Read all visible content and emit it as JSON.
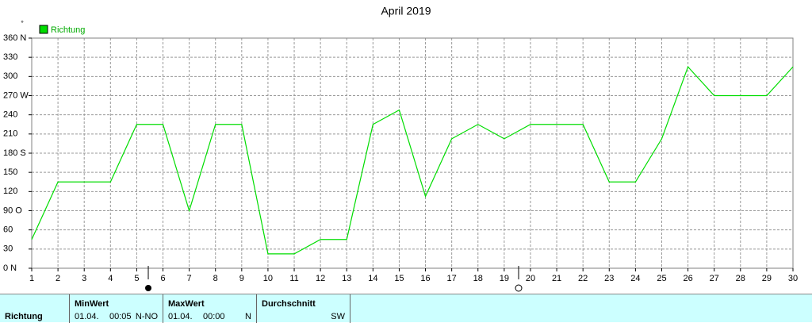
{
  "chart_data": {
    "type": "line",
    "title": "April 2019",
    "y_unit": "°",
    "x": [
      1,
      2,
      3,
      4,
      5,
      6,
      7,
      8,
      9,
      10,
      11,
      12,
      13,
      14,
      15,
      16,
      17,
      18,
      19,
      20,
      21,
      22,
      23,
      24,
      25,
      26,
      27,
      28,
      29,
      30
    ],
    "xlim": [
      1,
      30
    ],
    "xticks": [
      1,
      2,
      3,
      4,
      5,
      6,
      7,
      8,
      9,
      10,
      11,
      12,
      13,
      14,
      15,
      16,
      17,
      18,
      19,
      20,
      21,
      22,
      23,
      24,
      25,
      26,
      27,
      28,
      29,
      30
    ],
    "ylim": [
      0,
      360
    ],
    "yticks": [
      {
        "value": 0,
        "label": "0 N"
      },
      30,
      60,
      {
        "value": 90,
        "label": "90 O"
      },
      120,
      150,
      {
        "value": 180,
        "label": "180 S"
      },
      210,
      240,
      {
        "value": 270,
        "label": "270 W"
      },
      300,
      330,
      {
        "value": 360,
        "label": "360 N"
      }
    ],
    "grid": true,
    "series": [
      {
        "name": "Richtung",
        "color": "#00dd00",
        "values": [
          45,
          135,
          135,
          135,
          225,
          225,
          90,
          225,
          225,
          22.5,
          22.5,
          45,
          45,
          225,
          247.5,
          112.5,
          202.5,
          225,
          202.5,
          225,
          225,
          225,
          135,
          135,
          202.5,
          315,
          270,
          270,
          270,
          315
        ]
      }
    ]
  },
  "table": {
    "label": "Richtung",
    "min": {
      "title": "MinWert",
      "date": "01.04.",
      "time": "00:05",
      "value": "N-NO"
    },
    "max": {
      "title": "MaxWert",
      "date": "01.04.",
      "time": "00:00",
      "value": "N"
    },
    "avg": {
      "title": "Durchschnitt",
      "value": "SW"
    }
  }
}
